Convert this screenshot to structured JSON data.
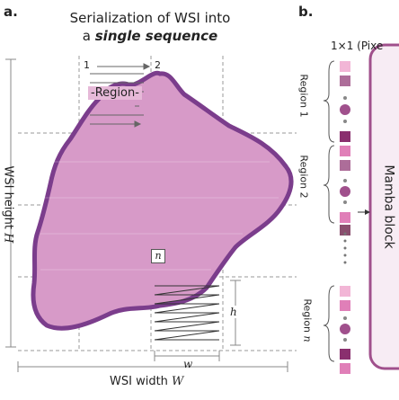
{
  "panel_a": {
    "label": "a.",
    "title_line1": "Serialization of WSI into",
    "title_prefix": "a",
    "title_emph": "single sequence",
    "step1": "1",
    "step2": "2",
    "region_label": "Region",
    "n_label": "n",
    "height_text": "WSI height",
    "height_var": "H",
    "width_text": "WSI width",
    "width_var": "W",
    "h_var": "h",
    "w_var": "w"
  },
  "panel_b": {
    "label": "b.",
    "patch_label": "1×1 (Pixe",
    "regions": [
      "Region 1",
      "Region 2",
      "Region"
    ],
    "region_n_var": "n",
    "block_label": "Mamba block",
    "colors": {
      "frame_purple": "#a0508c",
      "block_fill": "#f7ecf4",
      "token_pink": "#e07fb8",
      "token_dark": "#8a2f6e",
      "token_light": "#f2b6d6"
    }
  },
  "colors": {
    "tissue_fill": "#d79ac8",
    "tissue_edge": "#7b3d8c",
    "grid_line": "#9a9a9a"
  }
}
